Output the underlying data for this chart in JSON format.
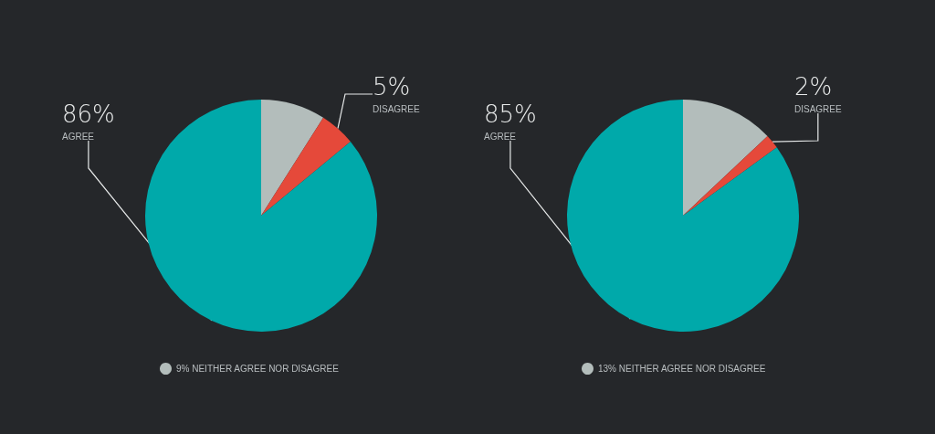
{
  "chart_data": [
    {
      "type": "pie",
      "categories": [
        "9% NEITHER AGREE NOR DISAGREE",
        "DISAGREE",
        "AGREE"
      ],
      "values": [
        9,
        5,
        86
      ],
      "colors": [
        "#b3bdbb",
        "#e5493a",
        "#00a9aa"
      ],
      "value_labels": [
        null,
        "5%",
        "86%"
      ],
      "legend": "bottom"
    },
    {
      "type": "pie",
      "categories": [
        "13% NEITHER AGREE NOR DISAGREE",
        "DISAGREE",
        "AGREE"
      ],
      "values": [
        13,
        2,
        85
      ],
      "colors": [
        "#b3bdbb",
        "#e5493a",
        "#00a9aa"
      ],
      "value_labels": [
        null,
        "2%",
        "85%"
      ],
      "legend": "bottom"
    }
  ]
}
